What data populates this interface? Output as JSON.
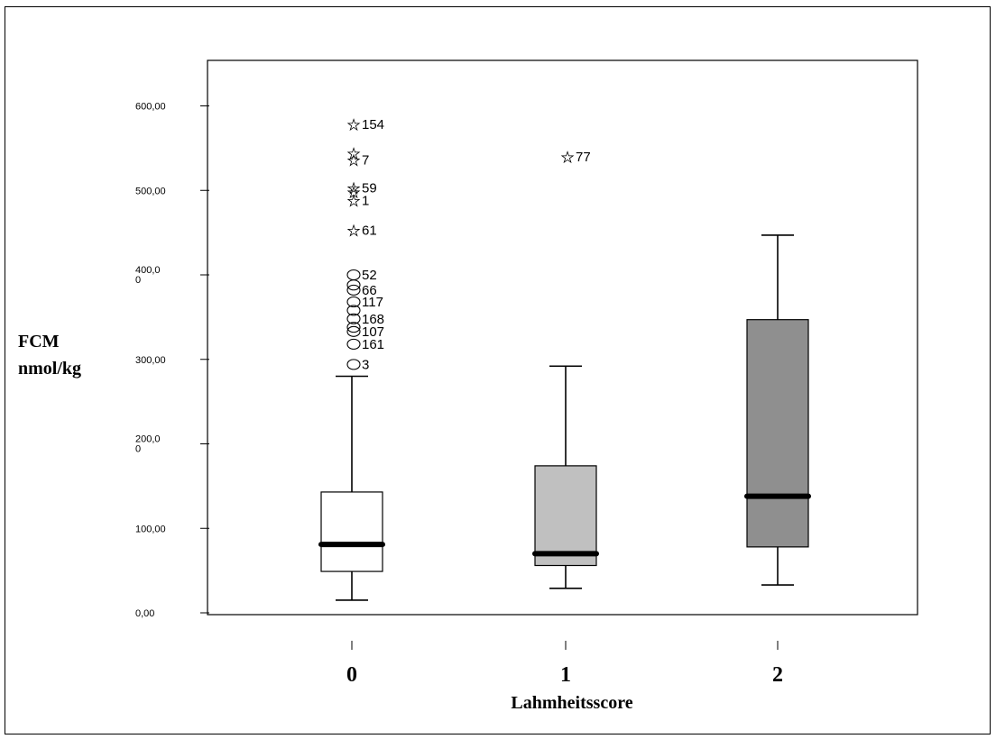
{
  "chart_data": {
    "type": "boxplot",
    "xlabel": "Lahmheitsscore",
    "ylabel_lines": [
      "FCM",
      "nmol/kg"
    ],
    "ylim": [
      0,
      600
    ],
    "yticks": [
      {
        "value": 0,
        "label": [
          "0,00"
        ]
      },
      {
        "value": 100,
        "label": [
          "100,00"
        ]
      },
      {
        "value": 200,
        "label": [
          "200,0",
          "0"
        ]
      },
      {
        "value": 300,
        "label": [
          "300,00"
        ]
      },
      {
        "value": 400,
        "label": [
          "400,0",
          "0"
        ]
      },
      {
        "value": 500,
        "label": [
          "500,00"
        ]
      },
      {
        "value": 600,
        "label": [
          "600,00"
        ]
      }
    ],
    "categories": [
      "0",
      "1",
      "2"
    ],
    "boxes": [
      {
        "category": "0",
        "fill": "#ffffff",
        "whisker_low": 15,
        "q1": 49,
        "median": 81,
        "q3": 143,
        "whisker_high": 280,
        "outliers": [
          {
            "marker": "circle",
            "value": 294,
            "label": "3"
          },
          {
            "marker": "circle",
            "value": 318,
            "label": "161"
          },
          {
            "marker": "circle",
            "value": 333,
            "label": "107"
          },
          {
            "marker": "circle",
            "value": 338,
            "label": ""
          },
          {
            "marker": "circle",
            "value": 348,
            "label": "168"
          },
          {
            "marker": "circle",
            "value": 358,
            "label": ""
          },
          {
            "marker": "circle",
            "value": 368,
            "label": "117"
          },
          {
            "marker": "circle",
            "value": 382,
            "label": "66"
          },
          {
            "marker": "circle",
            "value": 388,
            "label": ""
          },
          {
            "marker": "circle",
            "value": 400,
            "label": "52"
          },
          {
            "marker": "star",
            "value": 453,
            "label": "61"
          },
          {
            "marker": "star",
            "value": 488,
            "label": "1"
          },
          {
            "marker": "star",
            "value": 498,
            "label": ""
          },
          {
            "marker": "star",
            "value": 503,
            "label": "59"
          },
          {
            "marker": "star",
            "value": 536,
            "label": "7"
          },
          {
            "marker": "star",
            "value": 544,
            "label": ""
          },
          {
            "marker": "star",
            "value": 578,
            "label": "154"
          }
        ]
      },
      {
        "category": "1",
        "fill": "#c0c0c0",
        "whisker_low": 29,
        "q1": 56,
        "median": 70,
        "q3": 174,
        "whisker_high": 292,
        "outliers": [
          {
            "marker": "star",
            "value": 540,
            "label": "77"
          }
        ]
      },
      {
        "category": "2",
        "fill": "#8f8f8f",
        "whisker_low": 33,
        "q1": 78,
        "median": 138,
        "q3": 347,
        "whisker_high": 447,
        "outliers": []
      }
    ]
  }
}
